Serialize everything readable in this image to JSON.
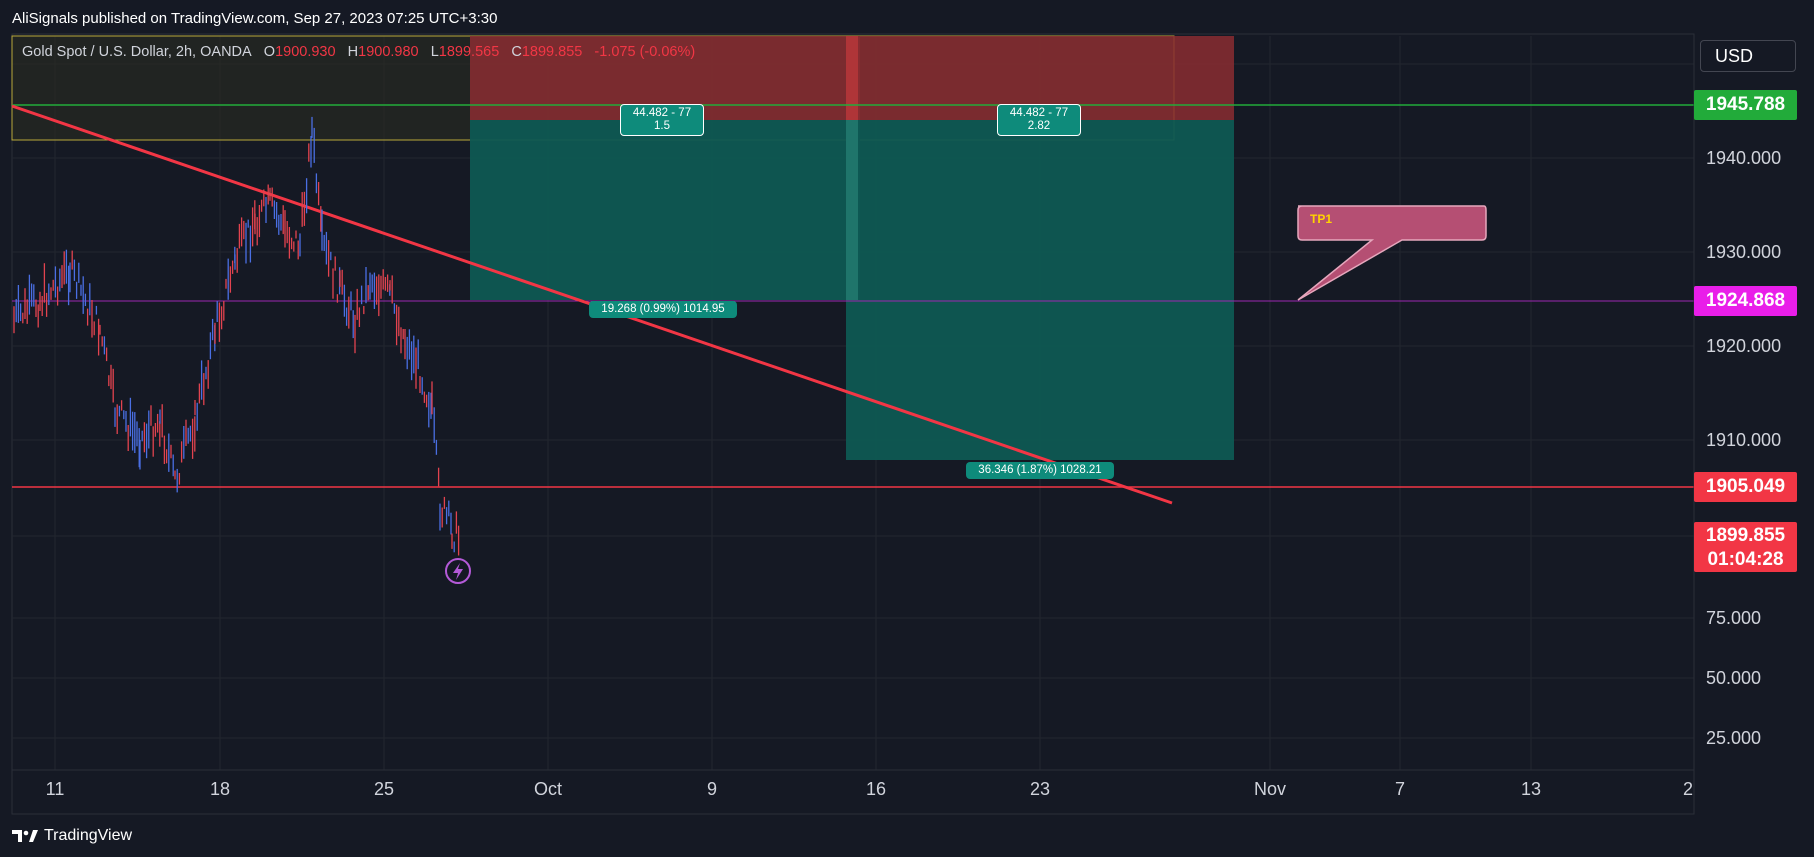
{
  "header": {
    "publisher_text": "AliSignals published on TradingView.com, Sep 27, 2023 07:25 UTC+3:30"
  },
  "legend": {
    "symbol": "Gold Spot / U.S. Dollar, 2h, OANDA",
    "open_label": "O",
    "open": "1900.930",
    "high_label": "H",
    "high": "1900.980",
    "low_label": "L",
    "low": "1899.565",
    "close_label": "C",
    "close": "1899.855",
    "change": "-1.075 (-0.06%)"
  },
  "currency_button": "USD",
  "price_axis": {
    "ticks": [
      "1940.000",
      "1930.000",
      "1920.000",
      "1910.000",
      "75.000",
      "50.000",
      "25.000"
    ],
    "tags": {
      "level_green": "1945.788",
      "level_magenta": "1924.868",
      "level_red": "1905.049",
      "last_price": "1899.855",
      "countdown": "01:04:28"
    }
  },
  "time_axis": {
    "labels": [
      "11",
      "18",
      "25",
      "Oct",
      "9",
      "16",
      "23",
      "Nov",
      "7",
      "13",
      "2"
    ]
  },
  "position_labels": {
    "p1_top_line1": "44.482 - 77",
    "p1_top_line2": "1.5",
    "p2_top_line1": "44.482 - 77",
    "p2_top_line2": "2.82",
    "p1_target": "19.268 (0.99%) 1014.95",
    "p2_target": "36.346 (1.87%) 1028.21"
  },
  "callout": {
    "text": "TP1"
  },
  "footer": {
    "brand": "TradingView"
  },
  "colors": {
    "background": "#151924",
    "green_level": "#22ab3a",
    "magenta_level": "#e91ee9",
    "red_level": "#f23645",
    "teal_zone": "#0e8b7b",
    "red_zone": "#8a2d31",
    "callout_fill": "#b54f73"
  }
}
